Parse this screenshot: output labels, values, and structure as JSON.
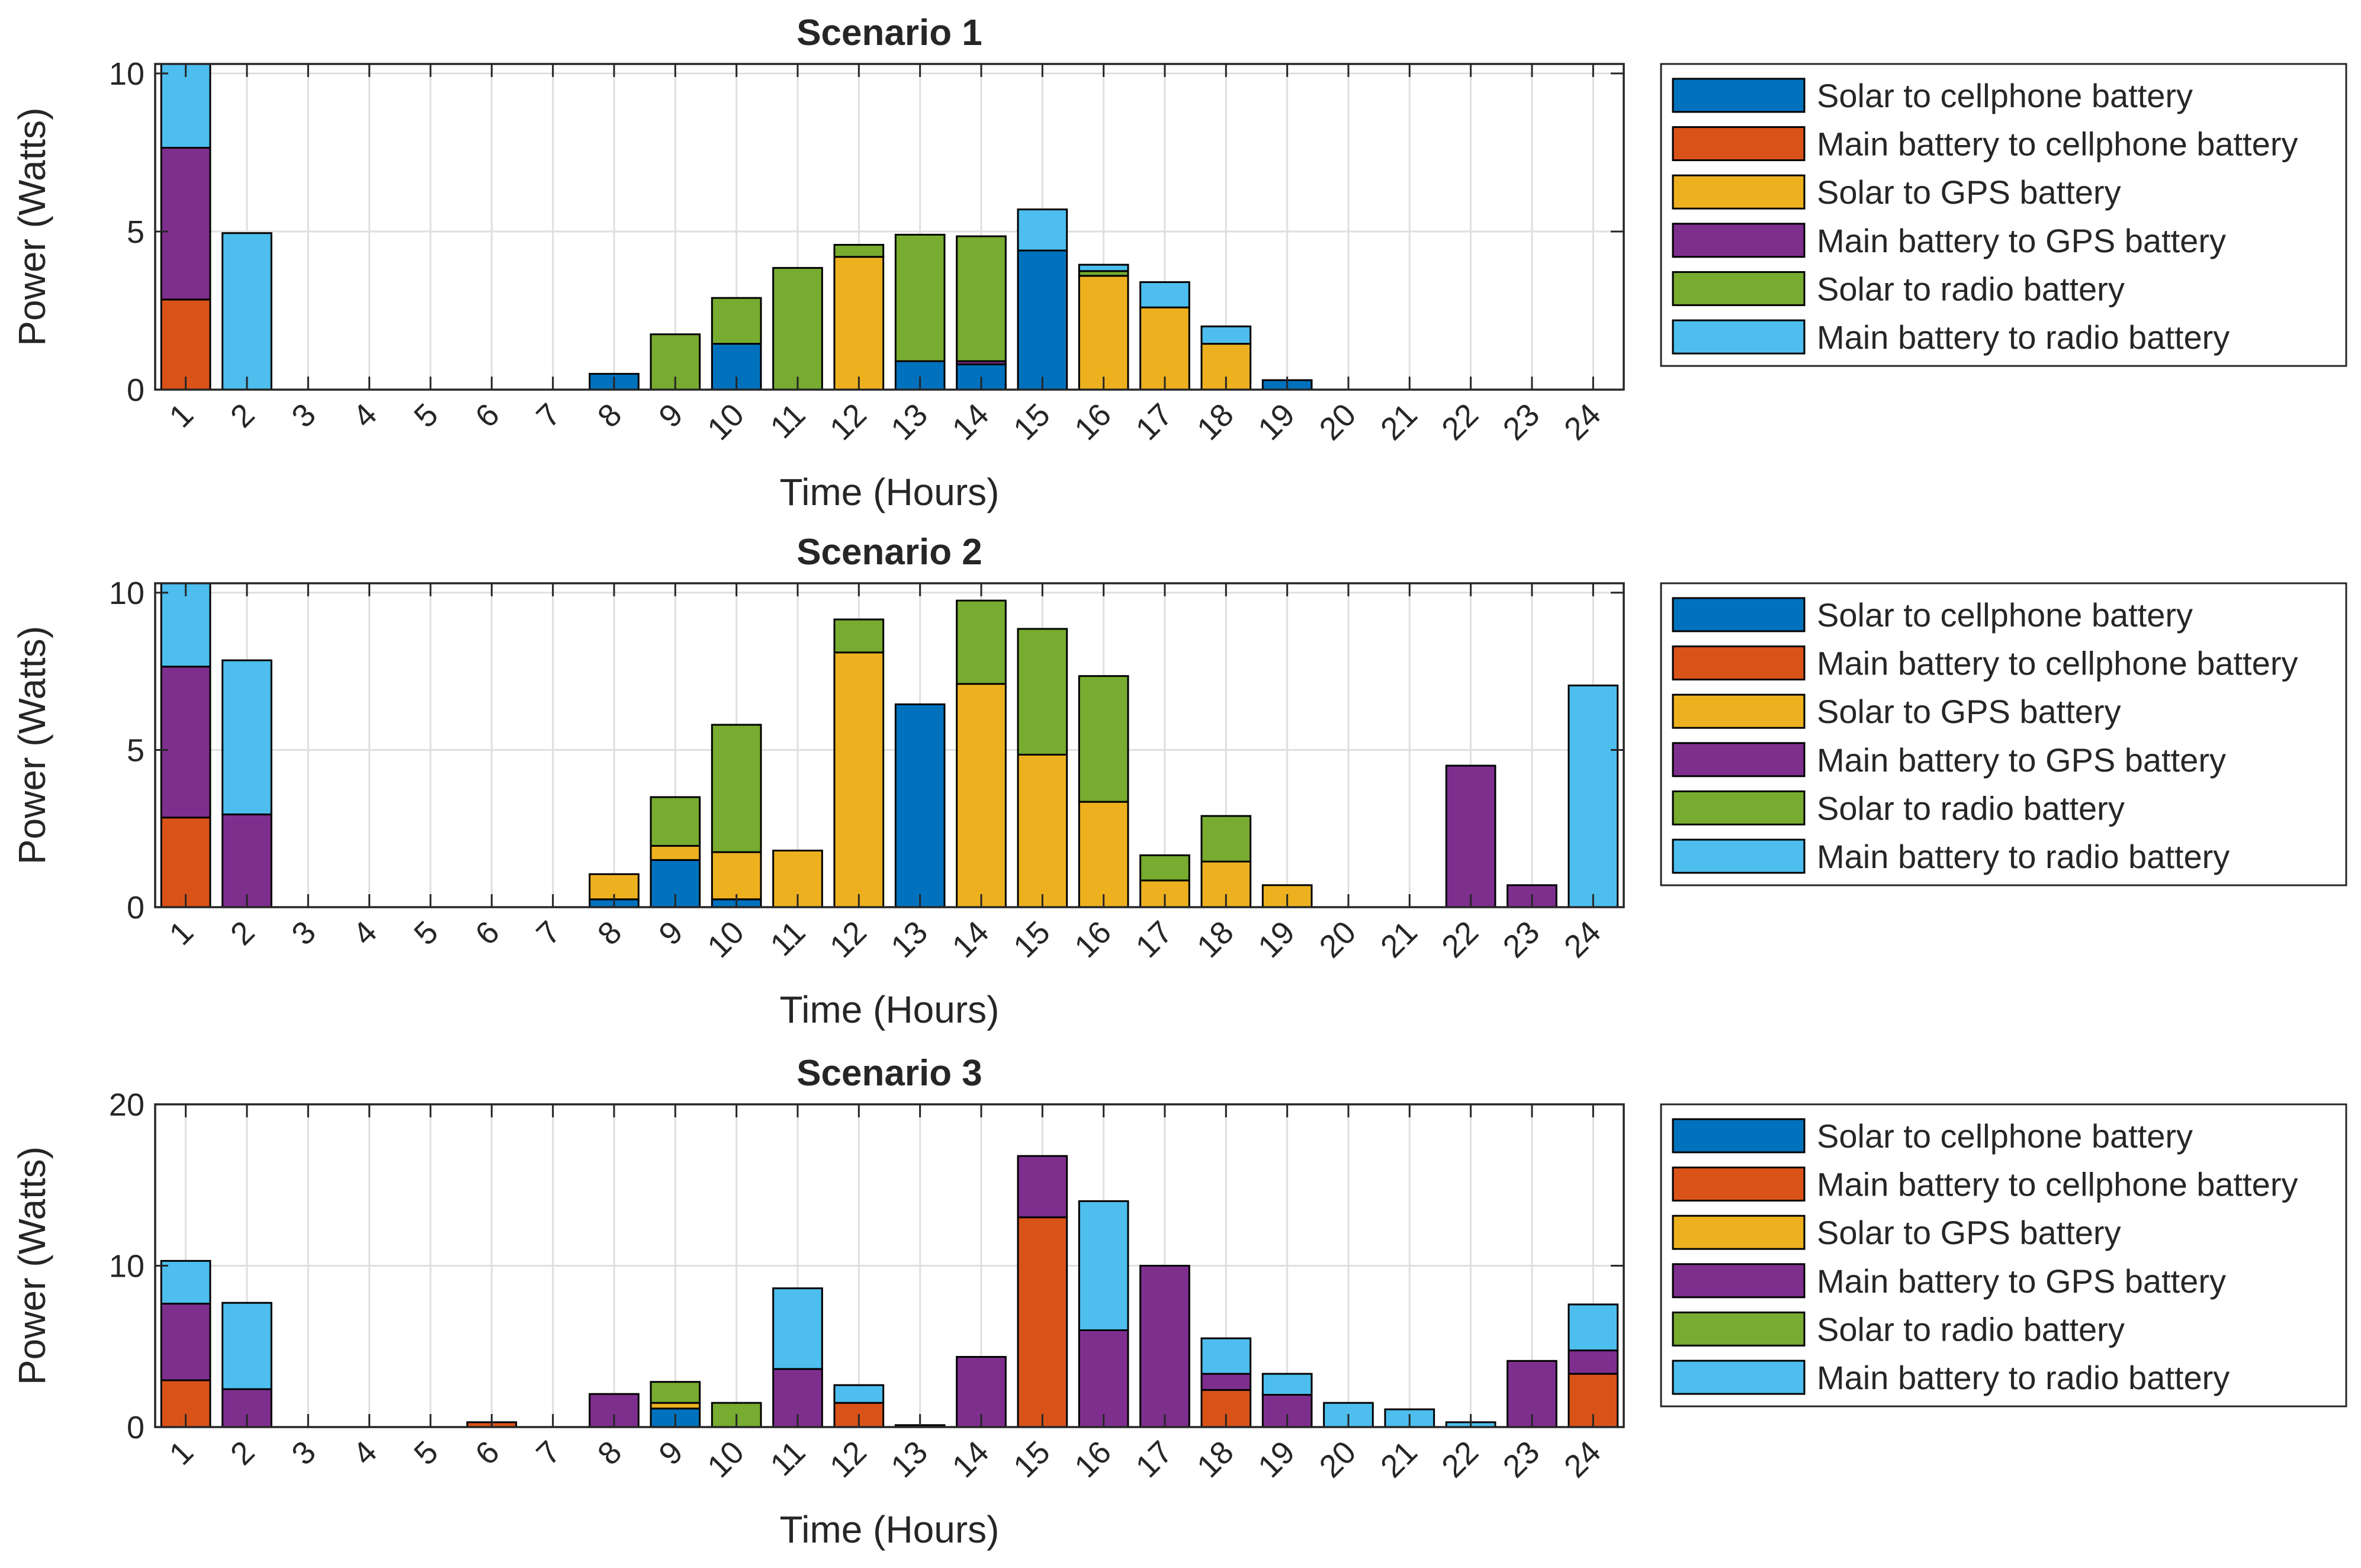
{
  "colors": {
    "Solar to cellphone battery": "#0072BD",
    "Main battery to cellphone battery": "#D95319",
    "Solar to GPS battery": "#EDB120",
    "Main battery to GPS battery": "#7E2F8E",
    "Solar to radio battery": "#77AC30",
    "Main battery to radio battery": "#4DBEEE"
  },
  "chart_data": [
    {
      "type": "bar",
      "stacked": true,
      "title": "Scenario 1",
      "xlabel": "Time (Hours)",
      "ylabel": "Power (Watts)",
      "ylim": [
        0,
        10.3
      ],
      "yticks": [
        0,
        5,
        10
      ],
      "grid": true,
      "legend_position": "outside-right",
      "categories": [
        "1",
        "2",
        "3",
        "4",
        "5",
        "6",
        "7",
        "8",
        "9",
        "10",
        "11",
        "12",
        "13",
        "14",
        "15",
        "16",
        "17",
        "18",
        "19",
        "20",
        "21",
        "22",
        "23",
        "24"
      ],
      "series": [
        {
          "name": "Solar to cellphone battery",
          "values": [
            0,
            0,
            0,
            0,
            0,
            0,
            0,
            0.5,
            0,
            1.45,
            0,
            0,
            0.9,
            0.8,
            4.4,
            0,
            0,
            0,
            0.3,
            0,
            0,
            0,
            0,
            0
          ]
        },
        {
          "name": "Main battery to cellphone battery",
          "values": [
            2.85,
            0,
            0,
            0,
            0,
            0,
            0,
            0,
            0,
            0,
            0,
            0,
            0,
            0,
            0,
            0,
            0,
            0,
            0,
            0,
            0,
            0,
            0,
            0
          ]
        },
        {
          "name": "Solar to GPS battery",
          "values": [
            0,
            0,
            0,
            0,
            0,
            0,
            0,
            0,
            0,
            0,
            0,
            4.2,
            0,
            0,
            0,
            3.6,
            2.6,
            1.45,
            0,
            0,
            0,
            0,
            0,
            0
          ]
        },
        {
          "name": "Main battery to GPS battery",
          "values": [
            4.8,
            0,
            0,
            0,
            0,
            0,
            0,
            0,
            0,
            0,
            0,
            0,
            0,
            0.1,
            0,
            0,
            0,
            0,
            0,
            0,
            0,
            0,
            0,
            0
          ]
        },
        {
          "name": "Solar to radio battery",
          "values": [
            0,
            0,
            0,
            0,
            0,
            0,
            0,
            0,
            1.75,
            1.45,
            3.85,
            0.38,
            4.0,
            3.95,
            0,
            0.15,
            0,
            0,
            0,
            0,
            0,
            0,
            0,
            0
          ]
        },
        {
          "name": "Main battery to radio battery",
          "values": [
            2.65,
            4.95,
            0,
            0,
            0,
            0,
            0,
            0,
            0,
            0,
            0,
            0,
            0,
            0,
            1.3,
            0.2,
            0.8,
            0.55,
            0,
            0,
            0,
            0,
            0,
            0
          ]
        }
      ]
    },
    {
      "type": "bar",
      "stacked": true,
      "title": "Scenario 2",
      "xlabel": "Time (Hours)",
      "ylabel": "Power (Watts)",
      "ylim": [
        0,
        10.3
      ],
      "yticks": [
        0,
        5,
        10
      ],
      "grid": true,
      "legend_position": "outside-right",
      "categories": [
        "1",
        "2",
        "3",
        "4",
        "5",
        "6",
        "7",
        "8",
        "9",
        "10",
        "11",
        "12",
        "13",
        "14",
        "15",
        "16",
        "17",
        "18",
        "19",
        "20",
        "21",
        "22",
        "23",
        "24"
      ],
      "series": [
        {
          "name": "Solar to cellphone battery",
          "values": [
            0,
            0,
            0,
            0,
            0,
            0,
            0,
            0.25,
            1.5,
            0.25,
            0,
            0,
            6.45,
            0,
            0,
            0,
            0,
            0,
            0,
            0,
            0,
            0,
            0,
            0
          ]
        },
        {
          "name": "Main battery to cellphone battery",
          "values": [
            2.85,
            0,
            0,
            0,
            0,
            0,
            0,
            0,
            0,
            0,
            0,
            0,
            0,
            0,
            0,
            0,
            0,
            0,
            0,
            0,
            0,
            0,
            0,
            0
          ]
        },
        {
          "name": "Solar to GPS battery",
          "values": [
            0,
            0,
            0,
            0,
            0,
            0,
            0,
            0.8,
            0.45,
            1.5,
            1.8,
            8.1,
            0,
            7.1,
            4.85,
            3.35,
            0.85,
            1.45,
            0.7,
            0,
            0,
            0,
            0,
            0
          ]
        },
        {
          "name": "Main battery to GPS battery",
          "values": [
            4.8,
            2.95,
            0,
            0,
            0,
            0,
            0,
            0,
            0,
            0,
            0,
            0,
            0,
            0,
            0,
            0,
            0,
            0,
            0,
            0,
            0,
            4.5,
            0.7,
            0
          ]
        },
        {
          "name": "Solar to radio battery",
          "values": [
            0,
            0,
            0,
            0,
            0,
            0,
            0,
            0,
            1.55,
            4.05,
            0,
            1.05,
            0,
            2.65,
            4.0,
            4.0,
            0.8,
            1.45,
            0,
            0,
            0,
            0,
            0,
            0
          ]
        },
        {
          "name": "Main battery to radio battery",
          "values": [
            2.65,
            4.9,
            0,
            0,
            0,
            0,
            0,
            0,
            0,
            0,
            0,
            0,
            0,
            0,
            0,
            0,
            0,
            0,
            0,
            0,
            0,
            0,
            0,
            7.05
          ]
        }
      ]
    },
    {
      "type": "bar",
      "stacked": true,
      "title": "Scenario 3",
      "xlabel": "Time (Hours)",
      "ylabel": "Power (Watts)",
      "ylim": [
        0,
        20
      ],
      "yticks": [
        0,
        10,
        20
      ],
      "grid": true,
      "legend_position": "outside-right",
      "categories": [
        "1",
        "2",
        "3",
        "4",
        "5",
        "6",
        "7",
        "8",
        "9",
        "10",
        "11",
        "12",
        "13",
        "14",
        "15",
        "16",
        "17",
        "18",
        "19",
        "20",
        "21",
        "22",
        "23",
        "24"
      ],
      "series": [
        {
          "name": "Solar to cellphone battery",
          "values": [
            0,
            0,
            0,
            0,
            0,
            0,
            0,
            0,
            1.15,
            0,
            0,
            0,
            0,
            0,
            0,
            0,
            0,
            0,
            0,
            0,
            0,
            0,
            0,
            0
          ]
        },
        {
          "name": "Main battery to cellphone battery",
          "values": [
            2.9,
            0,
            0,
            0,
            0,
            0.3,
            0,
            0,
            0,
            0,
            0,
            1.5,
            0.12,
            0,
            13.0,
            0,
            0,
            2.3,
            0,
            0,
            0,
            0,
            0,
            3.3
          ]
        },
        {
          "name": "Solar to GPS battery",
          "values": [
            0,
            0,
            0,
            0,
            0,
            0,
            0,
            0,
            0.35,
            0,
            0,
            0,
            0,
            0,
            0,
            0,
            0,
            0,
            0,
            0,
            0,
            0,
            0,
            0
          ]
        },
        {
          "name": "Main battery to GPS battery",
          "values": [
            4.75,
            2.35,
            0,
            0,
            0,
            0,
            0,
            2.05,
            0,
            0,
            3.6,
            0,
            0,
            4.35,
            3.8,
            6.0,
            10.0,
            1.0,
            2.0,
            0,
            0,
            0,
            4.1,
            1.45
          ]
        },
        {
          "name": "Solar to radio battery",
          "values": [
            0,
            0,
            0,
            0,
            0,
            0,
            0,
            0,
            1.3,
            1.5,
            0,
            0,
            0,
            0,
            0,
            0,
            0,
            0,
            0,
            0,
            0,
            0,
            0,
            0
          ]
        },
        {
          "name": "Main battery to radio battery",
          "values": [
            2.65,
            5.35,
            0,
            0,
            0,
            0,
            0,
            0,
            0,
            0,
            5.0,
            1.1,
            0,
            0,
            0,
            8.0,
            0,
            2.2,
            1.3,
            1.5,
            1.1,
            0.3,
            0,
            2.85
          ]
        }
      ]
    }
  ]
}
